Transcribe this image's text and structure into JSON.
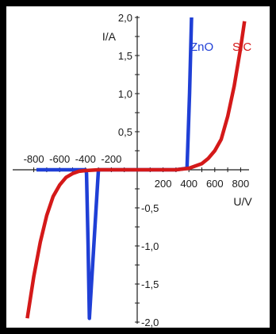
{
  "chart_data": {
    "type": "line",
    "title": "",
    "xlabel": "U/V",
    "ylabel": "I/A",
    "xlim": [
      -900,
      900
    ],
    "ylim": [
      -2.0,
      2.0
    ],
    "grid": false,
    "x_tick_labels": [
      {
        "value": -800,
        "label": "-800"
      },
      {
        "value": -600,
        "label": "-600"
      },
      {
        "value": -400,
        "label": "-400"
      },
      {
        "value": -200,
        "label": "-200"
      },
      {
        "value": 200,
        "label": "200"
      },
      {
        "value": 400,
        "label": "400"
      },
      {
        "value": 600,
        "label": "600"
      },
      {
        "value": 800,
        "label": "800"
      }
    ],
    "y_tick_labels": [
      {
        "value": 2.0,
        "label": "2,0"
      },
      {
        "value": 1.5,
        "label": "1,5"
      },
      {
        "value": 1.0,
        "label": "1,0"
      },
      {
        "value": 0.5,
        "label": "0,5"
      },
      {
        "value": -0.5,
        "label": "-0,5"
      },
      {
        "value": -1.0,
        "label": "-1,0"
      },
      {
        "value": -1.5,
        "label": "-1,5"
      },
      {
        "value": -2.0,
        "label": "-2,0"
      }
    ],
    "series": [
      {
        "name": "ZnO",
        "color": "#1f3fd6",
        "points": [
          {
            "x": -780,
            "y": 0
          },
          {
            "x": -400,
            "y": 0
          },
          {
            "x": -395,
            "y": -0.01
          },
          {
            "x": -392,
            "y": -0.05
          },
          {
            "x": -380,
            "y": -1.0
          },
          {
            "x": -370,
            "y": -1.95
          },
          {
            "x": -300,
            "y": 0
          },
          {
            "x": 0,
            "y": 0
          },
          {
            "x": 300,
            "y": 0
          },
          {
            "x": 385,
            "y": 0.02
          },
          {
            "x": 395,
            "y": 0.5
          },
          {
            "x": 405,
            "y": 1.0
          },
          {
            "x": 420,
            "y": 2.0
          }
        ]
      },
      {
        "name": "SiC",
        "color": "#d41919",
        "points": [
          {
            "x": -850,
            "y": -1.95
          },
          {
            "x": -800,
            "y": -1.4
          },
          {
            "x": -750,
            "y": -0.95
          },
          {
            "x": -700,
            "y": -0.6
          },
          {
            "x": -650,
            "y": -0.35
          },
          {
            "x": -600,
            "y": -0.2
          },
          {
            "x": -550,
            "y": -0.1
          },
          {
            "x": -500,
            "y": -0.05
          },
          {
            "x": -450,
            "y": -0.02
          },
          {
            "x": -400,
            "y": -0.01
          },
          {
            "x": -300,
            "y": 0
          },
          {
            "x": 0,
            "y": 0
          },
          {
            "x": 300,
            "y": 0
          },
          {
            "x": 400,
            "y": 0.02
          },
          {
            "x": 500,
            "y": 0.08
          },
          {
            "x": 550,
            "y": 0.15
          },
          {
            "x": 600,
            "y": 0.25
          },
          {
            "x": 650,
            "y": 0.4
          },
          {
            "x": 700,
            "y": 0.7
          },
          {
            "x": 750,
            "y": 1.1
          },
          {
            "x": 800,
            "y": 1.6
          },
          {
            "x": 830,
            "y": 1.95
          }
        ]
      }
    ]
  }
}
